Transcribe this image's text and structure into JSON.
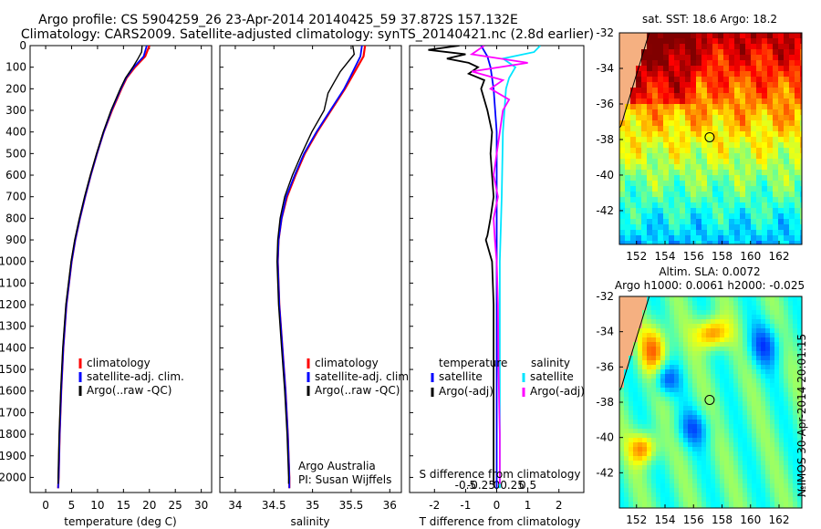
{
  "header": {
    "line1": "Argo profile: CS 5904259_26 23-Apr-2014 20140425_59 37.872S 157.132E",
    "line2": "Climatology: CARS2009. Satellite-adjusted climatology: synTS_20140421.nc (2.8d earlier)"
  },
  "colors": {
    "climatology": "#ff0000",
    "satellite": "#0000ff",
    "argo": "#000000",
    "sal_sat": "#00e5ff",
    "sal_argo": "#ff00ff"
  },
  "chart_data": [
    {
      "id": "temperature",
      "type": "line",
      "xlabel": "temperature (deg C)",
      "ylabel": "",
      "xlim": [
        -3,
        32
      ],
      "ylim": [
        2070,
        0
      ],
      "xticks": [
        0,
        5,
        10,
        15,
        20,
        25,
        30
      ],
      "yticks": [
        0,
        100,
        200,
        300,
        400,
        500,
        600,
        700,
        800,
        900,
        1000,
        1100,
        1200,
        1300,
        1400,
        1500,
        1600,
        1700,
        1800,
        1900,
        2000
      ],
      "legend": {
        "position": "lower-right",
        "entries": [
          "climatology",
          "satellite-adj. clim.",
          "Argo(..raw -QC)"
        ]
      },
      "series": [
        {
          "name": "climatology",
          "depth": [
            0,
            50,
            100,
            150,
            200,
            300,
            400,
            500,
            600,
            700,
            800,
            900,
            1000,
            1200,
            1400,
            1600,
            1800,
            2000,
            2050
          ],
          "values": [
            20.0,
            19.2,
            17.2,
            15.6,
            14.6,
            12.8,
            11.2,
            9.9,
            8.7,
            7.6,
            6.6,
            5.7,
            5.0,
            4.0,
            3.4,
            3.0,
            2.7,
            2.5,
            2.4
          ]
        },
        {
          "name": "satellite-adj. clim.",
          "depth": [
            0,
            50,
            100,
            150,
            200,
            300,
            400,
            500,
            600,
            700,
            800,
            900,
            1000,
            1200,
            1400,
            1600,
            1800,
            2000,
            2050
          ],
          "values": [
            19.5,
            18.9,
            17.0,
            15.5,
            14.5,
            12.7,
            11.2,
            9.9,
            8.7,
            7.6,
            6.6,
            5.7,
            5.0,
            4.0,
            3.4,
            3.0,
            2.7,
            2.5,
            2.4
          ]
        },
        {
          "name": "Argo(..raw -QC)",
          "depth": [
            0,
            30,
            60,
            100,
            150,
            200,
            300,
            400,
            500,
            600,
            700,
            800,
            900,
            1000,
            1200,
            1400,
            1600,
            1800,
            2000,
            2030
          ],
          "values": [
            18.6,
            18.5,
            17.8,
            16.8,
            15.4,
            14.4,
            12.6,
            11.1,
            9.8,
            8.6,
            7.5,
            6.5,
            5.6,
            4.9,
            3.9,
            3.3,
            2.9,
            2.6,
            2.4,
            2.4
          ]
        }
      ]
    },
    {
      "id": "salinity",
      "type": "line",
      "xlabel": "salinity",
      "ylabel": "",
      "xlim": [
        33.8,
        36.15
      ],
      "ylim": [
        2070,
        0
      ],
      "xticks": [
        34,
        34.5,
        35,
        35.5,
        36
      ],
      "xticklabels": [
        "34",
        "34.5",
        "35",
        "35.5",
        "36"
      ],
      "legend": {
        "position": "lower-right",
        "entries": [
          "climatology",
          "satellite-adj. clim.",
          "Argo(..raw -QC)"
        ]
      },
      "annotation": [
        "Argo Australia",
        "PI: Susan Wijffels"
      ],
      "series": [
        {
          "name": "climatology",
          "depth": [
            0,
            50,
            100,
            150,
            200,
            300,
            400,
            500,
            600,
            700,
            800,
            900,
            1000,
            1200,
            1400,
            1600,
            1800,
            2000,
            2050
          ],
          "values": [
            35.68,
            35.66,
            35.58,
            35.5,
            35.42,
            35.24,
            35.06,
            34.9,
            34.78,
            34.67,
            34.6,
            34.56,
            34.55,
            34.57,
            34.61,
            34.65,
            34.68,
            34.7,
            34.7
          ]
        },
        {
          "name": "satellite-adj. clim.",
          "depth": [
            0,
            50,
            100,
            150,
            200,
            300,
            400,
            500,
            600,
            700,
            800,
            900,
            1000,
            1200,
            1400,
            1600,
            1800,
            2000,
            2050
          ],
          "values": [
            35.64,
            35.62,
            35.55,
            35.48,
            35.41,
            35.23,
            35.05,
            34.89,
            34.77,
            34.66,
            34.6,
            34.56,
            34.55,
            34.57,
            34.61,
            34.65,
            34.68,
            34.7,
            34.7
          ]
        },
        {
          "name": "Argo(..raw -QC)",
          "depth": [
            0,
            40,
            80,
            120,
            170,
            220,
            300,
            400,
            500,
            600,
            700,
            800,
            900,
            1000,
            1200,
            1400,
            1600,
            1800,
            2000,
            2030
          ],
          "values": [
            35.52,
            35.54,
            35.45,
            35.36,
            35.28,
            35.2,
            35.15,
            34.99,
            34.86,
            34.74,
            34.64,
            34.58,
            34.55,
            34.54,
            34.56,
            34.6,
            34.64,
            34.67,
            34.69,
            34.69
          ]
        }
      ]
    },
    {
      "id": "difference",
      "type": "line",
      "xlabel": "T difference from climatology",
      "xlabel_top": "S difference from climatology",
      "xlim": [
        -2.8,
        2.8
      ],
      "ylim": [
        2070,
        0
      ],
      "xticks": [
        -2,
        -1,
        0,
        1,
        2
      ],
      "xticklabels": [
        "-2",
        "-1",
        "0",
        "1",
        "2"
      ],
      "sticks": [
        -1,
        -0.5,
        0,
        0.5,
        1
      ],
      "sticklabels": [
        "-0.5",
        "-0.25",
        "0",
        "0.25",
        "0.5"
      ],
      "legend": {
        "position": "middle",
        "groups": [
          {
            "title": "temperature",
            "entries": [
              "satellite",
              "Argo(-adj)"
            ]
          },
          {
            "title": "salinity",
            "entries": [
              "satellite",
              "Argo(-adj)"
            ]
          }
        ]
      },
      "series": [
        {
          "name": "temperature satellite",
          "depth": [
            0,
            50,
            100,
            200,
            400,
            700,
            1000,
            1500,
            2000,
            2050
          ],
          "values": [
            -0.5,
            -0.3,
            -0.2,
            -0.1,
            0,
            0,
            0,
            0,
            0,
            0
          ]
        },
        {
          "name": "temperature Argo(-adj)",
          "depth": [
            0,
            20,
            40,
            60,
            80,
            100,
            130,
            160,
            200,
            300,
            400,
            500,
            600,
            700,
            800,
            880,
            900,
            950,
            1000,
            1200,
            1500,
            1800,
            2000,
            2030
          ],
          "values": [
            -1.2,
            -2.2,
            -1.0,
            -1.6,
            -0.9,
            -0.6,
            -0.9,
            -0.4,
            -0.5,
            -0.3,
            -0.15,
            -0.2,
            -0.15,
            -0.1,
            -0.2,
            -0.3,
            -0.35,
            -0.25,
            -0.15,
            -0.1,
            -0.1,
            -0.1,
            -0.1,
            -0.1
          ]
        },
        {
          "name": "salinity satellite",
          "depth": [
            0,
            30,
            60,
            100,
            150,
            200,
            400,
            700,
            1000,
            1500,
            2000,
            2050
          ],
          "values": [
            0.7,
            0.6,
            0.1,
            0.3,
            0.2,
            0.15,
            0.1,
            0.08,
            0.05,
            0.05,
            0.05,
            0.05
          ]
        },
        {
          "name": "salinity Argo(-adj)",
          "depth": [
            0,
            40,
            80,
            120,
            160,
            200,
            250,
            300,
            400,
            500,
            600,
            700,
            800,
            900,
            1000,
            1200,
            1500,
            1800,
            2000,
            2030
          ],
          "values": [
            -0.2,
            -0.4,
            0.5,
            -0.4,
            0.1,
            -0.1,
            0.2,
            0.1,
            0.05,
            0.0,
            -0.05,
            0.02,
            -0.05,
            -0.03,
            0.0,
            0.02,
            0.03,
            0.05,
            0.05,
            0.05
          ]
        }
      ]
    },
    {
      "id": "sst_map",
      "type": "heatmap",
      "title": "sat. SST: 18.6  Argo: 18.2",
      "xlim": [
        150.8,
        163.6
      ],
      "ylim": [
        -43.9,
        -32
      ],
      "xticks": [
        152,
        154,
        156,
        158,
        160,
        162
      ],
      "yticks": [
        -32,
        -34,
        -36,
        -38,
        -40,
        -42
      ],
      "marker": {
        "lon": 157.13,
        "lat": -37.87
      }
    },
    {
      "id": "sla_map",
      "type": "heatmap",
      "title": "Altim. SLA: 0.0072",
      "subtitle": "Argo h1000: 0.0061 h2000: -0.025",
      "xlim": [
        150.8,
        163.6
      ],
      "ylim": [
        -44,
        -32
      ],
      "xticks": [
        152,
        154,
        156,
        158,
        160,
        162
      ],
      "yticks": [
        -32,
        -34,
        -36,
        -38,
        -40,
        -42
      ],
      "marker": {
        "lon": 157.13,
        "lat": -37.87
      }
    }
  ],
  "side_label": "№IMOS 30-Apr-2014 20:01:15"
}
